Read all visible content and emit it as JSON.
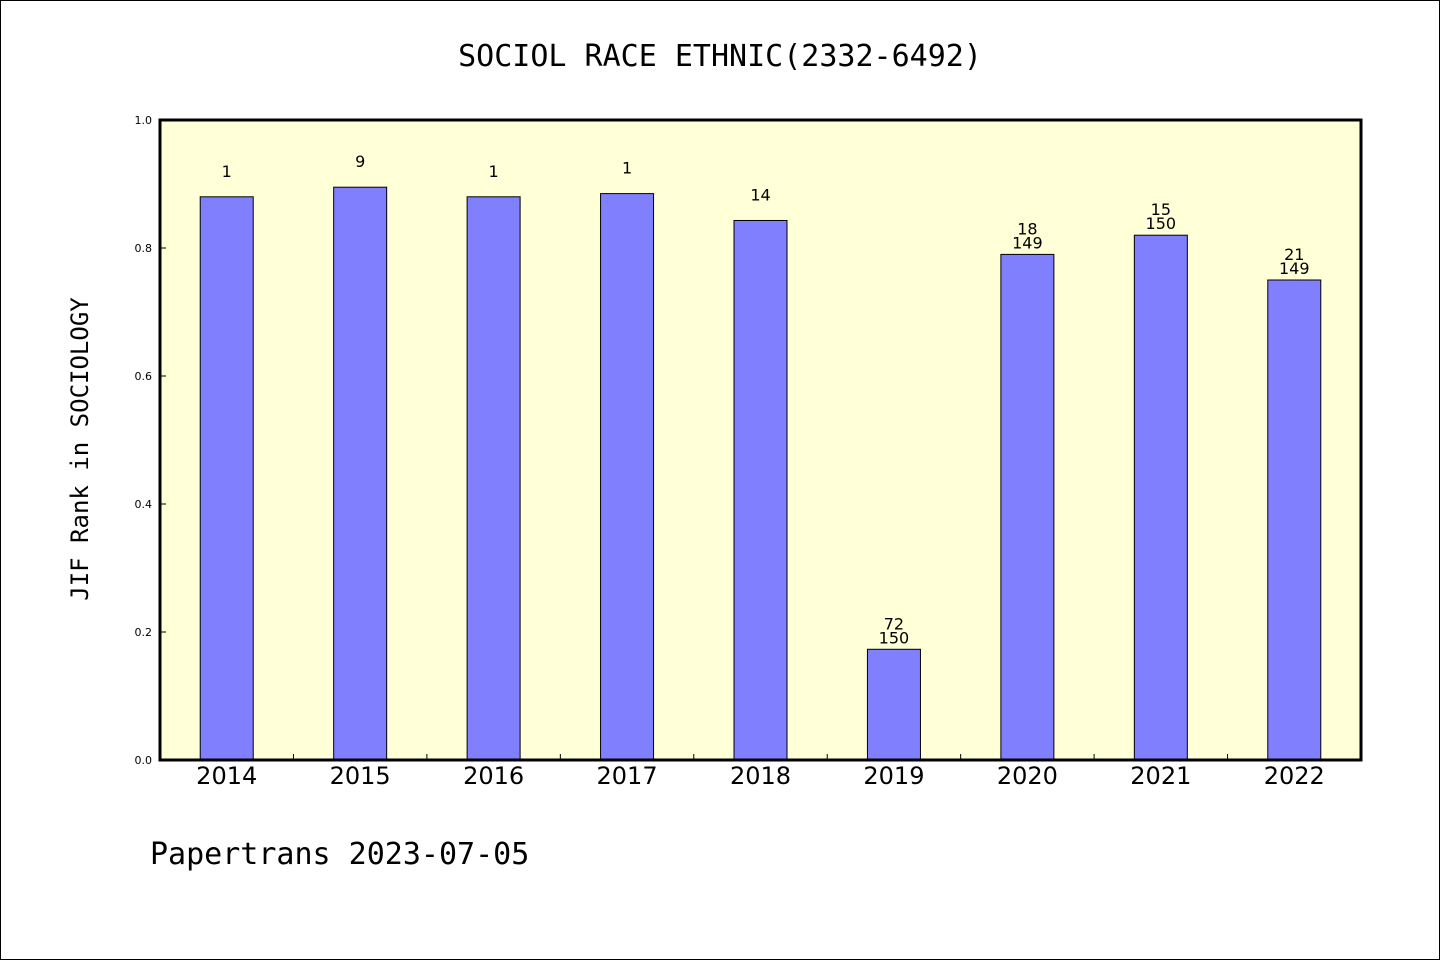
{
  "chart_data": {
    "type": "bar",
    "title": "SOCIOL RACE ETHNIC(2332-6492)",
    "ylabel": "JIF Rank in SOCIOLOGY",
    "xlabel": "",
    "categories": [
      "2014",
      "2015",
      "2016",
      "2017",
      "2018",
      "2019",
      "2020",
      "2021",
      "2022"
    ],
    "values": [
      0.88,
      0.895,
      0.88,
      0.885,
      0.843,
      0.173,
      0.79,
      0.82,
      0.75
    ],
    "labels": [
      [
        "1"
      ],
      [
        "9"
      ],
      [
        "1"
      ],
      [
        "1"
      ],
      [
        "14"
      ],
      [
        "72",
        "150"
      ],
      [
        "18",
        "149"
      ],
      [
        "15",
        "150"
      ],
      [
        "21",
        "149"
      ]
    ],
    "ylim": [
      0,
      1.0
    ],
    "yticks": [
      "0.0",
      "0.2",
      "0.4",
      "0.6",
      "0.8",
      "1.0"
    ],
    "grid": false,
    "colors": {
      "bar": "#8080ff",
      "plot_bg": "#ffffd8",
      "axis": "#000000"
    }
  },
  "footer": "Papertrans 2023-07-05"
}
